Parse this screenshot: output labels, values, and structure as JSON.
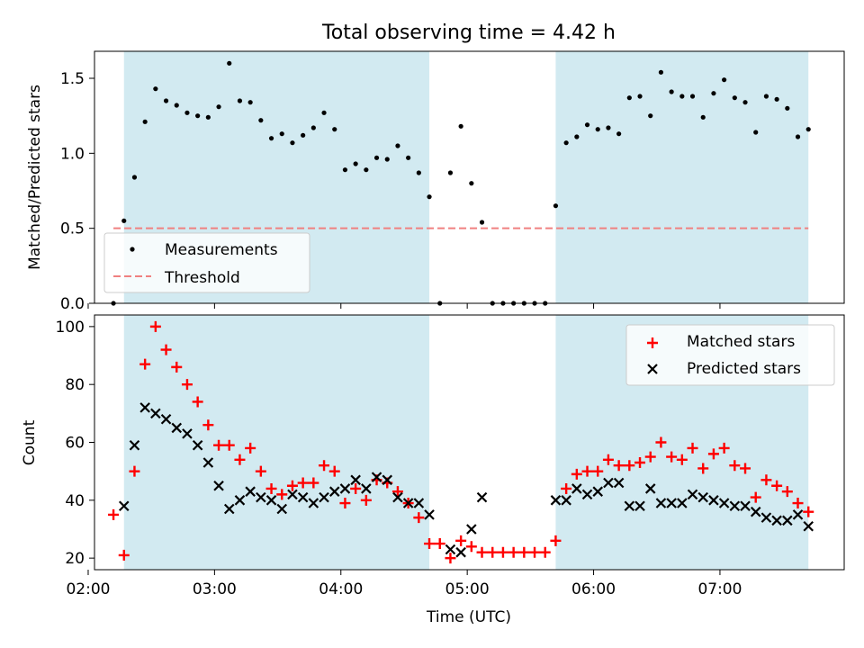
{
  "figure_title": "Total observing time = 4.42 h",
  "colors": {
    "shade": "#add8e6",
    "matched": "#ff0000",
    "predicted": "#000000",
    "measurement": "#000000",
    "threshold": "#f08080"
  },
  "chart_data": [
    {
      "type": "scatter",
      "title": "Total observing time = 4.42 h",
      "xlabel": "",
      "ylabel": "Matched/Predicted stars",
      "x_axis": "time",
      "xlim": [
        "02:03",
        "07:59"
      ],
      "ylim": [
        0,
        1.68
      ],
      "yticks": [
        "0.0",
        "0.5",
        "1.0",
        "1.5"
      ],
      "grid": false,
      "legend_position": "lower-left",
      "shaded_intervals": [
        [
          "02:17",
          "04:42"
        ],
        [
          "05:42",
          "07:42"
        ]
      ],
      "threshold": {
        "name": "Threshold",
        "value": 0.5,
        "x_range": [
          "02:12",
          "07:42"
        ]
      },
      "series": [
        {
          "name": "Measurements",
          "x": [
            "02:12",
            "02:17",
            "02:22",
            "02:27",
            "02:32",
            "02:37",
            "02:42",
            "02:47",
            "02:52",
            "02:57",
            "03:02",
            "03:07",
            "03:12",
            "03:17",
            "03:22",
            "03:27",
            "03:32",
            "03:37",
            "03:42",
            "03:47",
            "03:52",
            "03:57",
            "04:02",
            "04:07",
            "04:12",
            "04:17",
            "04:22",
            "04:27",
            "04:32",
            "04:37",
            "04:42",
            "04:47",
            "04:52",
            "04:57",
            "05:02",
            "05:07",
            "05:12",
            "05:17",
            "05:22",
            "05:27",
            "05:32",
            "05:37",
            "05:42",
            "05:47",
            "05:52",
            "05:57",
            "06:02",
            "06:07",
            "06:12",
            "06:17",
            "06:22",
            "06:27",
            "06:32",
            "06:37",
            "06:42",
            "06:47",
            "06:52",
            "06:57",
            "07:02",
            "07:07",
            "07:12",
            "07:17",
            "07:22",
            "07:27",
            "07:32",
            "07:37",
            "07:42"
          ],
          "y": [
            0.0,
            0.55,
            0.84,
            1.21,
            1.43,
            1.35,
            1.32,
            1.27,
            1.25,
            1.24,
            1.31,
            1.6,
            1.35,
            1.34,
            1.22,
            1.1,
            1.13,
            1.07,
            1.12,
            1.17,
            1.27,
            1.16,
            0.89,
            0.93,
            0.89,
            0.97,
            0.96,
            1.05,
            0.97,
            0.87,
            0.71,
            0.0,
            0.87,
            1.18,
            0.8,
            0.54,
            0.0,
            0.0,
            0.0,
            0.0,
            0.0,
            0.0,
            0.65,
            1.07,
            1.11,
            1.19,
            1.16,
            1.17,
            1.13,
            1.37,
            1.38,
            1.25,
            1.54,
            1.41,
            1.38,
            1.38,
            1.24,
            1.4,
            1.49,
            1.37,
            1.34,
            1.14,
            1.38,
            1.36,
            1.3,
            1.11,
            1.16
          ]
        }
      ]
    },
    {
      "type": "scatter",
      "title": "",
      "xlabel": "Time (UTC)",
      "ylabel": "Count",
      "x_axis": "time",
      "xlim": [
        "02:03",
        "07:59"
      ],
      "ylim": [
        16,
        104
      ],
      "xticks": [
        "02:00",
        "03:00",
        "04:00",
        "05:00",
        "06:00",
        "07:00"
      ],
      "yticks": [
        "20",
        "40",
        "60",
        "80",
        "100"
      ],
      "grid": false,
      "legend_position": "top-right",
      "shaded_intervals": [
        [
          "02:17",
          "04:42"
        ],
        [
          "05:42",
          "07:42"
        ]
      ],
      "series": [
        {
          "name": "Matched stars",
          "x": [
            "02:12",
            "02:17",
            "02:22",
            "02:27",
            "02:32",
            "02:37",
            "02:42",
            "02:47",
            "02:52",
            "02:57",
            "03:02",
            "03:07",
            "03:12",
            "03:17",
            "03:22",
            "03:27",
            "03:32",
            "03:37",
            "03:42",
            "03:47",
            "03:52",
            "03:57",
            "04:02",
            "04:07",
            "04:12",
            "04:17",
            "04:22",
            "04:27",
            "04:32",
            "04:37",
            "04:42",
            "04:47",
            "04:52",
            "04:57",
            "05:02",
            "05:07",
            "05:12",
            "05:17",
            "05:22",
            "05:27",
            "05:32",
            "05:37",
            "05:42",
            "05:47",
            "05:52",
            "05:57",
            "06:02",
            "06:07",
            "06:12",
            "06:17",
            "06:22",
            "06:27",
            "06:32",
            "06:37",
            "06:42",
            "06:47",
            "06:52",
            "06:57",
            "07:02",
            "07:07",
            "07:12",
            "07:17",
            "07:22",
            "07:27",
            "07:32",
            "07:37",
            "07:42"
          ],
          "y": [
            35,
            21,
            50,
            87,
            100,
            92,
            86,
            80,
            74,
            66,
            59,
            59,
            54,
            58,
            50,
            44,
            42,
            45,
            46,
            46,
            52,
            50,
            39,
            44,
            40,
            47,
            46,
            43,
            39,
            34,
            25,
            25,
            20,
            26,
            24,
            22,
            22,
            22,
            22,
            22,
            22,
            22,
            26,
            44,
            49,
            50,
            50,
            54,
            52,
            52,
            53,
            55,
            60,
            55,
            54,
            58,
            51,
            56,
            58,
            52,
            51,
            41,
            47,
            45,
            43,
            39,
            36
          ]
        },
        {
          "name": "Predicted stars",
          "x": [
            "02:17",
            "02:22",
            "02:27",
            "02:32",
            "02:37",
            "02:42",
            "02:47",
            "02:52",
            "02:57",
            "03:02",
            "03:07",
            "03:12",
            "03:17",
            "03:22",
            "03:27",
            "03:32",
            "03:37",
            "03:42",
            "03:47",
            "03:52",
            "03:57",
            "04:02",
            "04:07",
            "04:12",
            "04:17",
            "04:22",
            "04:27",
            "04:32",
            "04:37",
            "04:42",
            "04:52",
            "04:57",
            "05:02",
            "05:07",
            "05:42",
            "05:47",
            "05:52",
            "05:57",
            "06:02",
            "06:07",
            "06:12",
            "06:17",
            "06:22",
            "06:27",
            "06:32",
            "06:37",
            "06:42",
            "06:47",
            "06:52",
            "06:57",
            "07:02",
            "07:07",
            "07:12",
            "07:17",
            "07:22",
            "07:27",
            "07:32",
            "07:37",
            "07:42"
          ],
          "y": [
            38,
            59,
            72,
            70,
            68,
            65,
            63,
            59,
            53,
            45,
            37,
            40,
            43,
            41,
            40,
            37,
            42,
            41,
            39,
            41,
            43,
            44,
            47,
            44,
            48,
            47,
            41,
            39,
            39,
            35,
            23,
            22,
            30,
            41,
            40,
            40,
            44,
            42,
            43,
            46,
            46,
            38,
            38,
            44,
            39,
            39,
            39,
            42,
            41,
            40,
            39,
            38,
            38,
            36,
            34,
            33,
            33,
            35,
            31
          ]
        }
      ]
    }
  ]
}
